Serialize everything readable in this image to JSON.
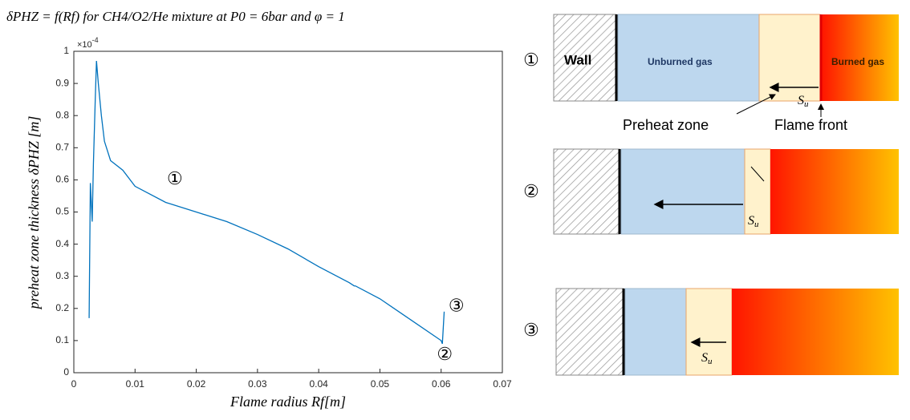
{
  "chart_data": {
    "type": "line",
    "title": "δPHZ = f(Rf) for CH4/O2/He mixture at P0 = 6bar and φ = 1",
    "x_label": "Flame radius Rf[m]",
    "y_label": "preheat zone thickness δPHZ [m]",
    "y_multiplier": {
      "base": "×10",
      "exponent": "-4"
    },
    "xlim": [
      0,
      0.07
    ],
    "xticks": [
      0,
      0.01,
      0.02,
      0.03,
      0.04,
      0.05,
      0.06,
      0.07
    ],
    "ylim": [
      0,
      1
    ],
    "yticks": [
      0,
      0.1,
      0.2,
      0.3,
      0.4,
      0.5,
      0.6,
      0.7,
      0.8,
      0.9,
      1
    ],
    "series": [
      {
        "color": "#0072bd",
        "x": [
          0.0025,
          0.0027,
          0.003,
          0.0032,
          0.0035,
          0.0037,
          0.004,
          0.0045,
          0.005,
          0.006,
          0.008,
          0.01,
          0.015,
          0.02,
          0.025,
          0.03,
          0.035,
          0.04,
          0.045,
          0.0458,
          0.046,
          0.05,
          0.055,
          0.06,
          0.0602,
          0.0605
        ],
        "values": [
          0.17,
          0.59,
          0.47,
          0.65,
          0.85,
          0.97,
          0.9,
          0.8,
          0.72,
          0.66,
          0.63,
          0.58,
          0.53,
          0.5,
          0.47,
          0.43,
          0.385,
          0.33,
          0.28,
          0.27,
          0.27,
          0.23,
          0.165,
          0.1,
          0.09,
          0.19
        ]
      }
    ],
    "annotations": [
      {
        "text": "①",
        "x": 0.0165,
        "y": 0.6
      },
      {
        "text": "②",
        "x": 0.0606,
        "y": 0.055
      },
      {
        "text": "③",
        "x": 0.0625,
        "y": 0.205
      }
    ]
  },
  "diagram": {
    "rows": [
      {
        "label": "①"
      },
      {
        "label": "②"
      },
      {
        "label": "③"
      }
    ],
    "wall": "Wall",
    "unburned_gas": "Unburned gas",
    "burned_gas": "Burned gas",
    "preheat_zone": "Preheat zone",
    "flame_front": "Flame front",
    "speed": {
      "base": "S",
      "sub": "u"
    }
  }
}
